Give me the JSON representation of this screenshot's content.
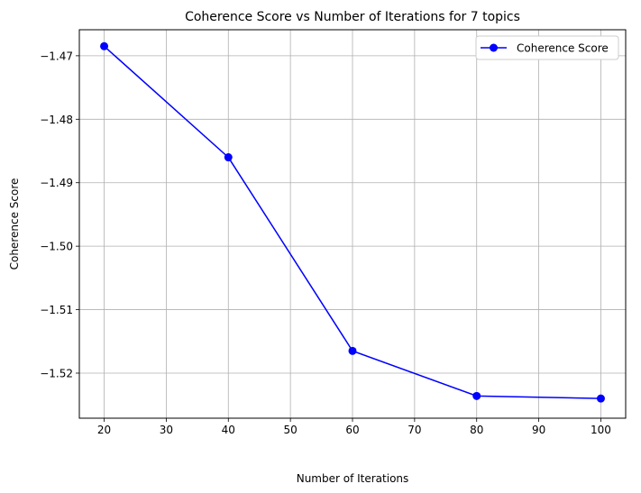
{
  "chart_data": {
    "type": "line",
    "title": "Coherence Score vs Number of Iterations for 7 topics",
    "xlabel": "Number of Iterations",
    "ylabel": "Coherence Score",
    "x": [
      20,
      40,
      60,
      80,
      100
    ],
    "series": [
      {
        "name": "Coherence Score",
        "color": "#0000ff",
        "marker": "circle",
        "values": [
          -1.4685,
          -1.486,
          -1.5165,
          -1.5236,
          -1.524
        ]
      }
    ],
    "xlim": [
      16,
      104
    ],
    "ylim": [
      -1.5271,
      -1.4659
    ],
    "xticks": [
      20,
      30,
      40,
      50,
      60,
      70,
      80,
      90,
      100
    ],
    "xtick_labels": [
      "20",
      "30",
      "40",
      "50",
      "60",
      "70",
      "80",
      "90",
      "100"
    ],
    "yticks": [
      -1.47,
      -1.48,
      -1.49,
      -1.5,
      -1.51,
      -1.52
    ],
    "ytick_labels": [
      "−1.47",
      "−1.48",
      "−1.49",
      "−1.50",
      "−1.51",
      "−1.52"
    ],
    "grid": true,
    "legend": {
      "position": "top-right",
      "entries": [
        "Coherence Score"
      ]
    }
  }
}
